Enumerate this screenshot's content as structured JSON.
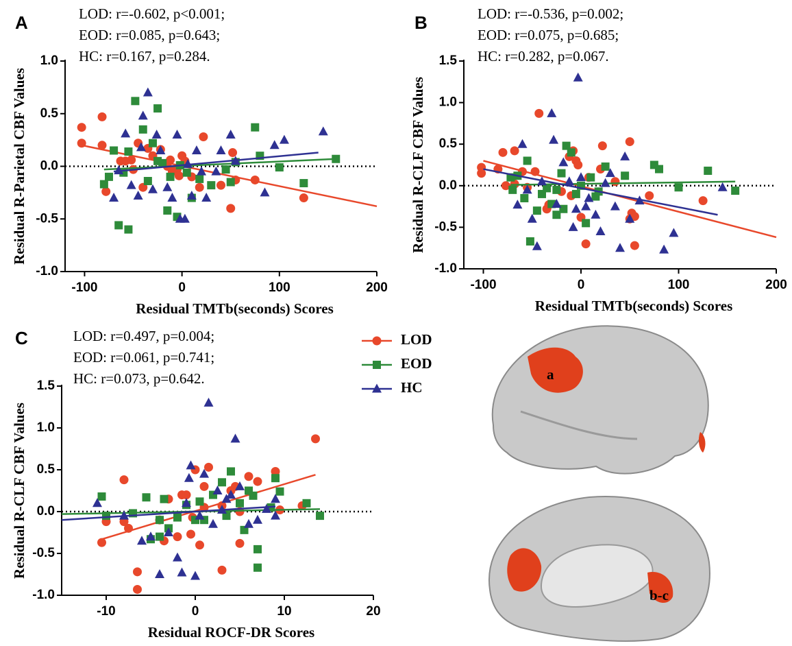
{
  "chart_data": [
    {
      "type": "scatter",
      "label": "A",
      "annotations": [
        "LOD: r=-0.602, p<0.001;",
        "EOD: r=0.085, p=0.643;",
        "HC: r=0.167, p=0.284."
      ],
      "x_label": "Residual TMTb(seconds) Scores",
      "y_label": "Residual R-Parietal CBF Values",
      "xlim": [
        -120,
        200
      ],
      "ylim": [
        -1,
        1
      ],
      "xticks": [
        -100,
        0,
        100,
        200
      ],
      "yticks": [
        {
          "value": -1,
          "label": "-1.0"
        },
        {
          "value": -0.5,
          "label": "-0.5"
        },
        {
          "value": 0,
          "label": "0.0"
        },
        {
          "value": 0.5,
          "label": "0.5"
        },
        {
          "value": 1,
          "label": "1.0"
        }
      ],
      "zero_line": true,
      "series": [
        {
          "name": "LOD",
          "color": "#e8482b",
          "marker": "circle",
          "x": [
            -103,
            -103,
            -82,
            -82,
            -78,
            -63,
            -58,
            -52,
            -45,
            -40,
            -35,
            -30,
            -22,
            -15,
            -10,
            -5,
            0,
            3,
            10,
            18,
            22,
            40,
            50,
            52,
            55,
            75,
            125,
            -12,
            -3,
            -50
          ],
          "values": [
            0.37,
            0.22,
            0.47,
            0.2,
            -0.24,
            0.05,
            0.05,
            0.06,
            0.22,
            -0.2,
            0.17,
            0.1,
            0.16,
            0,
            -0.05,
            -0.03,
            0.1,
            0.05,
            -0.1,
            -0.2,
            0.28,
            -0.18,
            -0.4,
            0.13,
            -0.13,
            -0.13,
            -0.3,
            0.06,
            -0.09,
            -0.03
          ],
          "fit": {
            "x": [
              -103,
              200
            ],
            "values": [
              0.2,
              -0.38
            ]
          }
        },
        {
          "name": "EOD",
          "color": "#2e8b3a",
          "marker": "square",
          "x": [
            -80,
            -75,
            -70,
            -65,
            -60,
            -55,
            -55,
            -48,
            -40,
            -35,
            -30,
            -25,
            -25,
            -15,
            -12,
            -5,
            -2,
            5,
            10,
            18,
            30,
            45,
            50,
            55,
            75,
            80,
            100,
            125,
            158,
            -20
          ],
          "values": [
            -0.17,
            -0.1,
            0.15,
            -0.56,
            -0.06,
            0.14,
            -0.6,
            0.62,
            0.35,
            -0.14,
            0.22,
            0.05,
            0.55,
            -0.42,
            -0.1,
            -0.48,
            0.01,
            -0.06,
            -0.3,
            -0.12,
            -0.18,
            -0.03,
            -0.15,
            0.04,
            0.37,
            0.1,
            -0.01,
            -0.16,
            0.07,
            0.03
          ],
          "fit": {
            "x": [
              -80,
              158
            ],
            "values": [
              -0.03,
              0.07
            ]
          }
        },
        {
          "name": "HC",
          "color": "#2e3192",
          "marker": "triangle",
          "x": [
            -65,
            -70,
            -58,
            -52,
            -45,
            -40,
            -35,
            -30,
            -26,
            -22,
            -15,
            -10,
            -5,
            -2,
            3,
            6,
            10,
            15,
            20,
            25,
            35,
            40,
            50,
            55,
            85,
            95,
            105,
            145,
            -42
          ],
          "values": [
            -0.04,
            -0.3,
            0.31,
            -0.18,
            -0.28,
            0.48,
            0.7,
            -0.22,
            0.3,
            0.15,
            -0.2,
            -0.3,
            0.3,
            -0.5,
            -0.5,
            0.02,
            -0.28,
            0.15,
            -0.05,
            -0.3,
            -0.05,
            0.15,
            0.3,
            0.05,
            -0.25,
            0.2,
            0.25,
            0.33,
            0.18
          ],
          "fit": {
            "x": [
              -70,
              140
            ],
            "values": [
              -0.05,
              0.13
            ]
          }
        }
      ]
    },
    {
      "type": "scatter",
      "label": "B",
      "annotations": [
        "LOD: r=-0.536, p=0.002;",
        "EOD: r=0.075, p=0.685;",
        "HC: r=0.282, p=0.067."
      ],
      "x_label": "Residual TMTb(seconds) Scores",
      "y_label": "Residual R-CLF CBF Values",
      "xlim": [
        -120,
        200
      ],
      "ylim": [
        -1,
        1.5
      ],
      "xticks": [
        -100,
        0,
        100,
        200
      ],
      "yticks": [
        {
          "value": -1,
          "label": "-1.0"
        },
        {
          "value": -0.5,
          "label": "-0.5"
        },
        {
          "value": 0,
          "label": "0.0"
        },
        {
          "value": 0.5,
          "label": "0.5"
        },
        {
          "value": 1,
          "label": "1.0"
        },
        {
          "value": 1.5,
          "label": "1.5"
        }
      ],
      "zero_line": true,
      "series": [
        {
          "name": "LOD",
          "color": "#e8482b",
          "marker": "circle",
          "x": [
            -102,
            -102,
            -85,
            -80,
            -77,
            -68,
            -68,
            -60,
            -55,
            -47,
            -43,
            -35,
            -33,
            -20,
            -12,
            -8,
            -5,
            -3,
            0,
            5,
            8,
            20,
            22,
            35,
            50,
            50,
            52,
            55,
            55,
            70,
            125,
            -10
          ],
          "values": [
            0.22,
            0.15,
            0.2,
            0.4,
            0,
            0.02,
            0.42,
            0.17,
            -0.02,
            0.17,
            0.87,
            -0.28,
            -0.23,
            -0.07,
            0.35,
            0.42,
            0.3,
            0.25,
            -0.38,
            -0.7,
            0.1,
            0.2,
            0.48,
            0.05,
            0.53,
            -0.4,
            -0.33,
            -0.72,
            -0.37,
            -0.12,
            -0.18,
            -0.12
          ],
          "fit": {
            "x": [
              -100,
              200
            ],
            "values": [
              0.3,
              -0.62
            ]
          }
        },
        {
          "name": "EOD",
          "color": "#2e8b3a",
          "marker": "square",
          "x": [
            -72,
            -70,
            -65,
            -58,
            -55,
            -52,
            -45,
            -40,
            -35,
            -30,
            -25,
            -20,
            -18,
            -15,
            -10,
            -5,
            0,
            5,
            10,
            15,
            18,
            25,
            45,
            75,
            80,
            100,
            130,
            158,
            -25
          ],
          "values": [
            0.1,
            -0.05,
            0.12,
            -0.15,
            0.3,
            -0.67,
            -0.3,
            -0.1,
            -0.03,
            -0.22,
            -0.35,
            0.15,
            -0.28,
            0.48,
            0.4,
            -0.1,
            0,
            -0.45,
            0.1,
            -0.13,
            -0.07,
            0.23,
            0.12,
            0.25,
            0.2,
            -0.02,
            0.18,
            -0.06,
            -0.05
          ],
          "fit": {
            "x": [
              -72,
              158
            ],
            "values": [
              0.01,
              0.05
            ]
          }
        },
        {
          "name": "HC",
          "color": "#2e3192",
          "marker": "triangle",
          "x": [
            -65,
            -60,
            -55,
            -50,
            -45,
            -30,
            -28,
            -25,
            -18,
            -12,
            -8,
            -5,
            -3,
            0,
            5,
            8,
            15,
            20,
            25,
            30,
            35,
            40,
            45,
            50,
            60,
            85,
            95,
            145,
            -40
          ],
          "values": [
            -0.23,
            0.5,
            -0.05,
            -0.4,
            -0.73,
            0.87,
            0.55,
            -0.22,
            0.28,
            0.05,
            -0.5,
            -0.28,
            1.3,
            0.1,
            -0.25,
            -0.15,
            -0.35,
            -0.55,
            0.03,
            0.15,
            -0.25,
            -0.75,
            0.35,
            -0.4,
            -0.18,
            -0.77,
            -0.57,
            -0.02,
            0.05
          ],
          "fit": {
            "x": [
              -100,
              140
            ],
            "values": [
              0.2,
              -0.35
            ]
          }
        }
      ]
    },
    {
      "type": "scatter",
      "label": "C",
      "annotations": [
        "LOD: r=0.497, p=0.004;",
        "EOD: r=0.061, p=0.741;",
        "HC: r=0.073, p=0.642."
      ],
      "x_label": "Residual ROCF-DR Scores",
      "y_label": "Residual R-CLF CBF Values",
      "xlim": [
        -15,
        20
      ],
      "ylim": [
        -1,
        1.5
      ],
      "xticks": [
        -10,
        0,
        10,
        20
      ],
      "yticks": [
        {
          "value": -1,
          "label": "-1.0"
        },
        {
          "value": -0.5,
          "label": "-0.5"
        },
        {
          "value": 0,
          "label": "0.0"
        },
        {
          "value": 0.5,
          "label": "0.5"
        },
        {
          "value": 1,
          "label": "1.0"
        },
        {
          "value": 1.5,
          "label": "1.5"
        }
      ],
      "zero_line": true,
      "legend": "right",
      "series": [
        {
          "name": "LOD",
          "color": "#e8482b",
          "marker": "circle",
          "x": [
            -10.5,
            -10,
            -8,
            -8,
            -7.5,
            -6.5,
            -6.5,
            -4,
            -3.5,
            -3,
            -2,
            -1.5,
            -1,
            -0.5,
            0,
            0.5,
            1,
            1,
            1.5,
            3,
            3,
            4,
            5,
            5,
            6,
            7,
            9,
            9.5,
            12,
            13.5,
            -0.3,
            4.5
          ],
          "values": [
            -0.37,
            -0.12,
            0.38,
            -0.12,
            -0.2,
            -0.72,
            -0.93,
            -0.1,
            -0.35,
            0.15,
            -0.3,
            0.2,
            0.2,
            -0.27,
            0.5,
            -0.4,
            0.05,
            0.3,
            0.53,
            -0.7,
            0.07,
            0.25,
            -0.38,
            0,
            0.42,
            0.36,
            0.48,
            0.02,
            0.07,
            0.87,
            -0.07,
            0.3
          ],
          "fit": {
            "x": [
              -10.5,
              13.5
            ],
            "values": [
              -0.33,
              0.44
            ]
          }
        },
        {
          "name": "EOD",
          "color": "#2e8b3a",
          "marker": "square",
          "x": [
            -10.5,
            -10,
            -7,
            -5.5,
            -5,
            -4,
            -3.5,
            -3,
            -2,
            -1,
            0,
            0.5,
            1,
            2,
            3,
            3.5,
            4,
            5,
            5.5,
            6,
            6.5,
            7,
            7,
            8.5,
            9,
            9.5,
            12.5,
            14,
            -4
          ],
          "values": [
            0.18,
            -0.05,
            -0.02,
            0.17,
            -0.33,
            -0.1,
            0.15,
            -0.2,
            -0.07,
            0.08,
            -0.1,
            0.12,
            -0.1,
            0.2,
            0.35,
            -0.05,
            0.48,
            0.1,
            -0.22,
            0.25,
            0.19,
            -0.45,
            -0.67,
            0.05,
            0.4,
            0.24,
            0.1,
            -0.05,
            -0.3
          ],
          "fit": {
            "x": [
              -15,
              14
            ],
            "values": [
              -0.03,
              0.03
            ]
          }
        },
        {
          "name": "HC",
          "color": "#2e3192",
          "marker": "triangle",
          "x": [
            -11,
            -8,
            -5,
            -4,
            -3,
            -2,
            -1.5,
            -1,
            -0.5,
            0,
            0.5,
            1,
            1.5,
            2,
            2.5,
            3,
            3.5,
            4,
            4.5,
            5,
            6,
            7,
            8,
            9,
            9,
            -6,
            -0.7
          ],
          "values": [
            0.1,
            -0.05,
            -0.3,
            -0.75,
            -0.25,
            -0.55,
            -0.73,
            0.1,
            0.55,
            -0.77,
            -0.05,
            0.45,
            1.3,
            -0.15,
            0.25,
            0.02,
            0.15,
            0.2,
            0.87,
            0.3,
            -0.15,
            -0.1,
            0.03,
            -0.05,
            0.15,
            -0.35,
            0.4
          ],
          "fit": {
            "x": [
              -15,
              9
            ],
            "values": [
              -0.1,
              0.06
            ]
          }
        }
      ]
    }
  ],
  "brain_labels": [
    "a",
    "b-c"
  ]
}
